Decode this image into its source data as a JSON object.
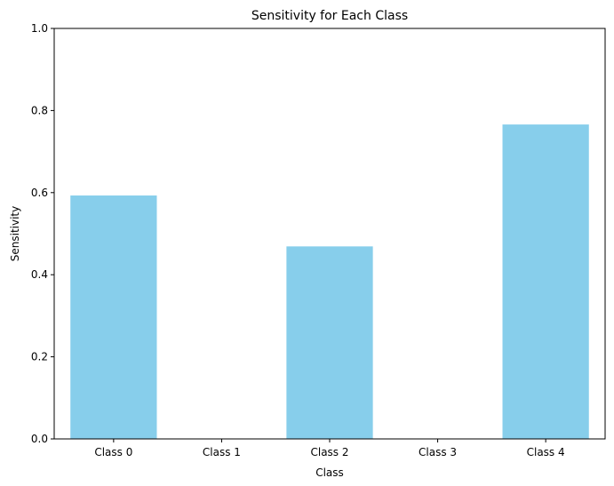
{
  "chart_data": {
    "type": "bar",
    "title": "Sensitivity for Each Class",
    "xlabel": "Class",
    "ylabel": "Sensitivity",
    "categories": [
      "Class 0",
      "Class 1",
      "Class 2",
      "Class 3",
      "Class 4"
    ],
    "values": [
      0.593,
      0.0,
      0.469,
      0.0,
      0.766
    ],
    "ylim": [
      0,
      1
    ],
    "yticks": [
      "0.0",
      "0.2",
      "0.4",
      "0.6",
      "0.8",
      "1.0"
    ],
    "ytick_values": [
      0,
      0.2,
      0.4,
      0.6,
      0.8,
      1.0
    ],
    "bar_color": "#87ceeb",
    "grid": false,
    "legend": "none"
  }
}
